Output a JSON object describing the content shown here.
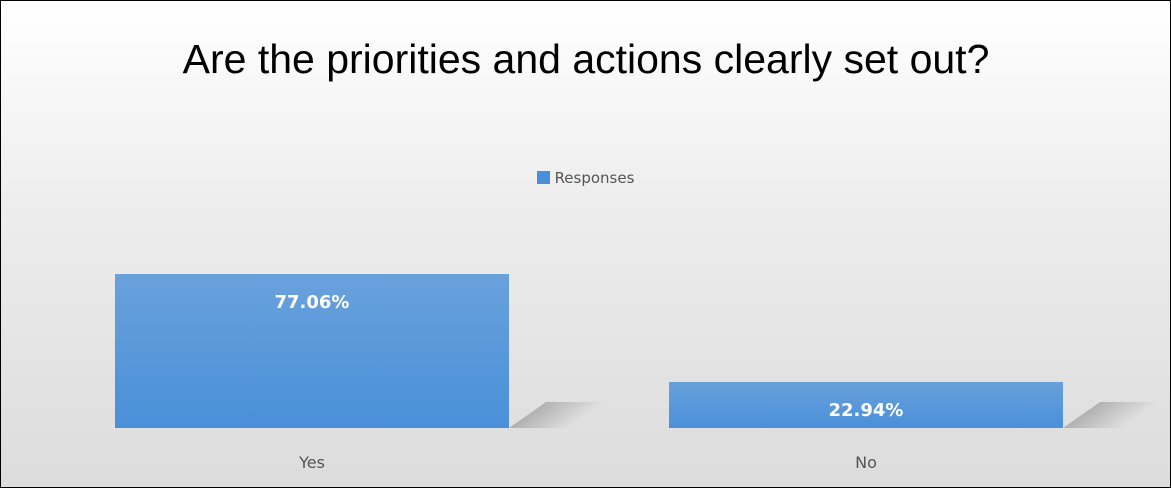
{
  "chart_data": {
    "type": "bar",
    "title": "Are the priorities and actions clearly set out?",
    "categories": [
      "Yes",
      "No"
    ],
    "series": [
      {
        "name": "Responses",
        "color": "#4a90d9",
        "values": [
          77.06,
          22.94
        ],
        "value_labels": [
          "77.06%",
          "22.94%"
        ]
      }
    ],
    "legend": "top"
  }
}
